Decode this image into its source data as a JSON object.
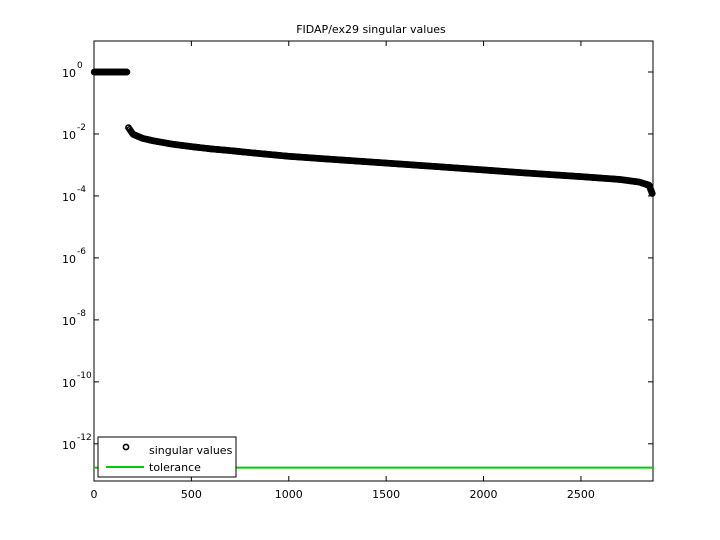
{
  "chart_data": {
    "type": "scatter",
    "title": "FIDAP/ex29 singular values",
    "xlabel": "",
    "ylabel": "",
    "xlim": [
      0,
      2870
    ],
    "ylim_exp": [
      -13.2,
      1.0
    ],
    "y_scale": "log",
    "x_ticks": [
      0,
      500,
      1000,
      1500,
      2000,
      2500
    ],
    "y_ticks": [
      {
        "base": "10",
        "exp": "0",
        "value": 0
      },
      {
        "base": "10",
        "exp": "-2",
        "value": -2
      },
      {
        "base": "10",
        "exp": "-4",
        "value": -4
      },
      {
        "base": "10",
        "exp": "-6",
        "value": -6
      },
      {
        "base": "10",
        "exp": "-8",
        "value": -8
      },
      {
        "base": "10",
        "exp": "-10",
        "value": -10
      },
      {
        "base": "10",
        "exp": "-12",
        "value": -12
      }
    ],
    "series": [
      {
        "name": "singular values",
        "marker": "circle",
        "color": "#000000",
        "points": [
          [
            1,
            1.0
          ],
          [
            40,
            1.0
          ],
          [
            80,
            1.0
          ],
          [
            120,
            1.0
          ],
          [
            170,
            1.0
          ],
          [
            177,
            0.016
          ],
          [
            200,
            0.0098
          ],
          [
            250,
            0.0072
          ],
          [
            300,
            0.0061
          ],
          [
            400,
            0.0047
          ],
          [
            500,
            0.0039
          ],
          [
            600,
            0.0033
          ],
          [
            700,
            0.0029
          ],
          [
            800,
            0.0025
          ],
          [
            1000,
            0.0019
          ],
          [
            1200,
            0.00155
          ],
          [
            1500,
            0.00115
          ],
          [
            1800,
            0.00085
          ],
          [
            2000,
            0.00069
          ],
          [
            2200,
            0.00056
          ],
          [
            2500,
            0.00042
          ],
          [
            2700,
            0.00034
          ],
          [
            2800,
            0.00028
          ],
          [
            2850,
            0.00022
          ],
          [
            2866,
            0.00012
          ]
        ]
      },
      {
        "name": "tolerance",
        "type": "line",
        "color": "#00cc00",
        "value": 1.7e-13
      }
    ],
    "legend": {
      "placement": "bottom-left",
      "entries": [
        "singular values",
        "tolerance"
      ]
    },
    "grid": false
  }
}
